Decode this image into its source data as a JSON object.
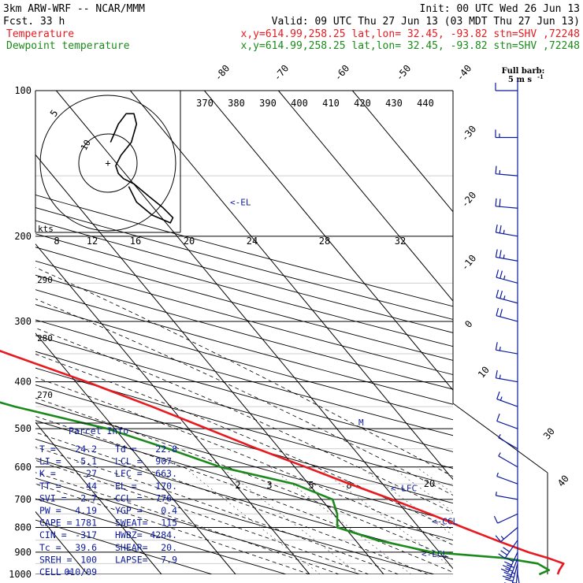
{
  "header": {
    "model": "3km ARW-WRF -- NCAR/MMM",
    "init": "Init: 00 UTC Wed 26 Jun 13",
    "fcst": "Fcst.    33 h",
    "valid": "Valid: 09 UTC Thu 27 Jun 13 (03 MDT Thu 27 Jun 13)",
    "temperature_label": "Temperature",
    "dewpoint_label": "Dewpoint temperature",
    "location_info": "x,y=614.99,258.25   lat,lon= 32.45, -93.82  stn=SHV ,72248",
    "colors": {
      "temperature": "#e8191f",
      "dewpoint": "#1b8a1b",
      "parcel": "#0b1a9e"
    }
  },
  "barb_legend": {
    "line1": "Full barb:",
    "line2": "5 m s",
    "sup": "-1"
  },
  "hodograph": {
    "units": "kts",
    "ring_labels": [
      "5",
      "10"
    ],
    "center_mark": "+"
  },
  "parcel_info": {
    "title": "Parcel Info",
    "rows": [
      [
        "T  =",
        "24.2",
        "Td =",
        "22.8"
      ],
      [
        "LI =",
        "-5.1",
        "LCL =",
        "907."
      ],
      [
        "K  =",
        "27",
        "LFC =",
        "663."
      ],
      [
        "TT =",
        "44",
        "EL  =",
        "170."
      ],
      [
        "SVI =",
        "2.7",
        "CCL =",
        "776."
      ],
      [
        "PW =",
        "4.19",
        "YGP =",
        "0.4"
      ],
      [
        "CAPE =",
        "1781",
        "SWEAT=",
        "115"
      ],
      [
        "CIN =",
        "-317",
        "HWBZ=",
        "4284."
      ],
      [
        "Tc =",
        "39.6",
        "SHEAR=",
        "20."
      ],
      [
        "SREH =",
        "100",
        "LAPSE=",
        "7.9"
      ],
      [
        "CELL =",
        "010/09",
        "",
        ""
      ]
    ]
  },
  "level_labels": {
    "el": "<-EL",
    "lfc": "<-LFC",
    "ccl": "<-CCL",
    "lcl": "<-LCL"
  },
  "chart_data": {
    "type": "line",
    "diagram": "skew-T log-p",
    "pressure_levels_hPa": [
      100,
      200,
      300,
      400,
      500,
      600,
      700,
      800,
      900,
      1000
    ],
    "isotherm_labels_C": [
      "-80",
      "-70",
      "-60",
      "-50",
      "-40",
      "-30",
      "-20",
      "-10",
      "0",
      "10",
      "20",
      "30",
      "40"
    ],
    "theta_labels_K": [
      "370",
      "380",
      "390",
      "400",
      "410",
      "420",
      "430",
      "440"
    ],
    "mixing_ratio_top_labels": [
      "8",
      "12",
      "16",
      "20",
      "24",
      "28",
      "32"
    ],
    "mixing_ratio_lower_labels": [
      "2",
      "3",
      "5",
      "8",
      "20"
    ],
    "theta_e_left_labels": [
      "290",
      "280",
      "270"
    ],
    "series": [
      {
        "name": "Temperature",
        "color": "#e8191f",
        "points": [
          {
            "p": 1000,
            "t": 23.5
          },
          {
            "p": 980,
            "t": 24.2
          },
          {
            "p": 950,
            "t": 25.5
          },
          {
            "p": 925,
            "t": 24.0
          },
          {
            "p": 900,
            "t": 22.0
          },
          {
            "p": 850,
            "t": 19.0
          },
          {
            "p": 800,
            "t": 16.0
          },
          {
            "p": 750,
            "t": 13.0
          },
          {
            "p": 700,
            "t": 9.5
          },
          {
            "p": 650,
            "t": 5.5
          },
          {
            "p": 600,
            "t": 1.5
          },
          {
            "p": 550,
            "t": -3.0
          },
          {
            "p": 500,
            "t": -7.5
          },
          {
            "p": 450,
            "t": -12.5
          },
          {
            "p": 400,
            "t": -18.5
          },
          {
            "p": 350,
            "t": -26.0
          },
          {
            "p": 300,
            "t": -34.5
          },
          {
            "p": 250,
            "t": -44.0
          },
          {
            "p": 200,
            "t": -55.5
          },
          {
            "p": 170,
            "t": -62.0
          },
          {
            "p": 150,
            "t": -67.0
          },
          {
            "p": 130,
            "t": -69.0
          },
          {
            "p": 115,
            "t": -66.5
          },
          {
            "p": 100,
            "t": -63.0
          }
        ]
      },
      {
        "name": "Dewpoint temperature",
        "color": "#1b8a1b",
        "points": [
          {
            "p": 1000,
            "t": 21.0
          },
          {
            "p": 980,
            "t": 22.8
          },
          {
            "p": 950,
            "t": 22.0
          },
          {
            "p": 925,
            "t": 18.0
          },
          {
            "p": 900,
            "t": 9.0
          },
          {
            "p": 850,
            "t": 3.0
          },
          {
            "p": 800,
            "t": -1.0
          },
          {
            "p": 750,
            "t": 0.5
          },
          {
            "p": 700,
            "t": 1.5
          },
          {
            "p": 650,
            "t": -2.0
          },
          {
            "p": 600,
            "t": -10.0
          },
          {
            "p": 550,
            "t": -15.0
          },
          {
            "p": 500,
            "t": -21.0
          },
          {
            "p": 450,
            "t": -31.0
          },
          {
            "p": 400,
            "t": -40.0
          },
          {
            "p": 350,
            "t": -48.0
          },
          {
            "p": 300,
            "t": -55.0
          },
          {
            "p": 250,
            "t": -64.0
          },
          {
            "p": 200,
            "t": -75.0
          },
          {
            "p": 170,
            "t": -80.0
          },
          {
            "p": 150,
            "t": -84.0
          },
          {
            "p": 130,
            "t": -88.0
          },
          {
            "p": 115,
            "t": -91.0
          },
          {
            "p": 100,
            "t": -93.0
          }
        ]
      }
    ],
    "parcel_levels_hPa": {
      "EL": 170,
      "LFC": 663,
      "CCL": 776,
      "LCL": 907
    },
    "wind_barbs": [
      {
        "p": 1000,
        "dir": 170,
        "spd": 8
      },
      {
        "p": 975,
        "dir": 185,
        "spd": 14
      },
      {
        "p": 950,
        "dir": 195,
        "spd": 18
      },
      {
        "p": 925,
        "dir": 200,
        "spd": 20
      },
      {
        "p": 900,
        "dir": 205,
        "spd": 20
      },
      {
        "p": 850,
        "dir": 215,
        "spd": 15
      },
      {
        "p": 800,
        "dir": 230,
        "spd": 8
      },
      {
        "p": 750,
        "dir": 245,
        "spd": 5
      },
      {
        "p": 700,
        "dir": 280,
        "spd": 4
      },
      {
        "p": 650,
        "dir": 290,
        "spd": 3
      },
      {
        "p": 600,
        "dir": 300,
        "spd": 4
      },
      {
        "p": 550,
        "dir": 300,
        "spd": 4
      },
      {
        "p": 500,
        "dir": 290,
        "spd": 5
      },
      {
        "p": 450,
        "dir": 290,
        "spd": 7
      },
      {
        "p": 400,
        "dir": 280,
        "spd": 8
      },
      {
        "p": 350,
        "dir": 280,
        "spd": 9
      },
      {
        "p": 300,
        "dir": 285,
        "spd": 11
      },
      {
        "p": 275,
        "dir": 285,
        "spd": 12
      },
      {
        "p": 250,
        "dir": 285,
        "spd": 13
      },
      {
        "p": 225,
        "dir": 280,
        "spd": 13
      },
      {
        "p": 200,
        "dir": 280,
        "spd": 12
      },
      {
        "p": 175,
        "dir": 275,
        "spd": 11
      },
      {
        "p": 150,
        "dir": 275,
        "spd": 9
      },
      {
        "p": 125,
        "dir": 270,
        "spd": 7
      },
      {
        "p": 100,
        "dir": 270,
        "spd": 6
      }
    ],
    "hodograph_kts": [
      {
        "u": 1,
        "v": -8
      },
      {
        "u": 4,
        "v": -15
      },
      {
        "u": 7,
        "v": -19
      },
      {
        "u": 10,
        "v": -19
      },
      {
        "u": 11,
        "v": -15
      },
      {
        "u": 9,
        "v": -8
      },
      {
        "u": 5,
        "v": -3
      },
      {
        "u": 3,
        "v": 1
      },
      {
        "u": 4,
        "v": 4
      },
      {
        "u": 6,
        "v": 6
      },
      {
        "u": 10,
        "v": 8
      },
      {
        "u": 16,
        "v": 13
      },
      {
        "u": 21,
        "v": 17
      },
      {
        "u": 25,
        "v": 21
      },
      {
        "u": 24,
        "v": 23
      },
      {
        "u": 17,
        "v": 20
      },
      {
        "u": 11,
        "v": 15
      },
      {
        "u": 8,
        "v": 9
      }
    ]
  }
}
